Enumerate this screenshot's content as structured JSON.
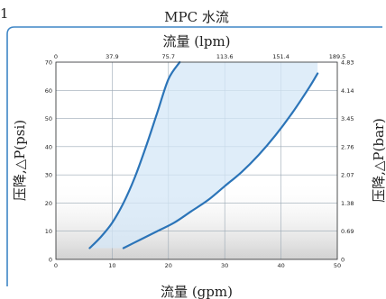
{
  "corner_mark": "1",
  "chart_data": {
    "type": "area",
    "title": "MPC 水流",
    "xlabel": "流量 (gpm)",
    "ylabel": "压降,△P(psi)",
    "x2label": "流量 (lpm)",
    "y2label": "压降,△P(bar)",
    "xlim": [
      0,
      50
    ],
    "ylim": [
      0,
      70
    ],
    "x2lim": [
      0,
      189.5
    ],
    "y2lim": [
      0,
      4.83
    ],
    "xticks": [
      "0",
      "10",
      "20",
      "30",
      "40",
      "50"
    ],
    "yticks": [
      "0",
      "10",
      "20",
      "30",
      "40",
      "50",
      "60",
      "70"
    ],
    "x2ticks": [
      "0",
      "37.9",
      "75.7",
      "113.6",
      "151.4",
      "189.5"
    ],
    "y2ticks": [
      "0",
      "0.69",
      "1.38",
      "2.07",
      "2.76",
      "3.45",
      "4.14",
      "4.83"
    ],
    "grid": true,
    "colors": {
      "fill": "#d4e7f7",
      "line": "#2b74b8",
      "grid": "#9aa8b4"
    },
    "series": [
      {
        "x": [
          6,
          8,
          10,
          12,
          14,
          16,
          18,
          20,
          22
        ],
        "y": [
          4,
          8,
          13,
          20,
          29,
          40,
          52,
          64,
          70
        ]
      },
      {
        "x": [
          12,
          15,
          18,
          21,
          24,
          27,
          30,
          33,
          36,
          39,
          42,
          45,
          46.5
        ],
        "y": [
          4,
          7,
          10,
          13,
          17,
          21,
          26,
          31,
          37,
          44,
          52,
          61,
          66
        ]
      }
    ]
  }
}
